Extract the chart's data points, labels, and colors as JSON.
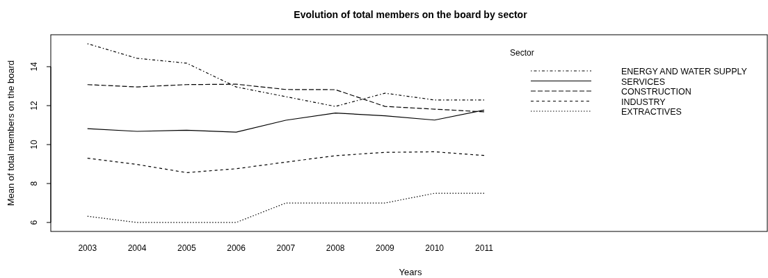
{
  "chart_data": {
    "type": "line",
    "title": "Evolution of total members on the board by sector",
    "xlabel": "Years",
    "ylabel": "Mean of total members on the board",
    "legend_title": "Sector",
    "legend": "top right",
    "grid": false,
    "x": [
      2003,
      2004,
      2005,
      2006,
      2007,
      2008,
      2009,
      2010,
      2011
    ],
    "xlim": [
      2002.26,
      2016.71
    ],
    "xticks": [
      2003,
      2004,
      2005,
      2006,
      2007,
      2008,
      2009,
      2010,
      2011
    ],
    "ylim": [
      5.54,
      15.64
    ],
    "yticks": [
      6,
      8,
      10,
      12,
      14
    ],
    "series": [
      {
        "name": "ENERGY AND WATER SUPPLY",
        "color": "#000000",
        "line_style": "dashdot",
        "values": [
          15.18,
          14.43,
          14.18,
          12.96,
          12.46,
          11.96,
          12.64,
          12.29,
          12.29
        ]
      },
      {
        "name": "SERVICES",
        "color": "#000000",
        "line_style": "solid",
        "values": [
          10.82,
          10.68,
          10.74,
          10.64,
          11.25,
          11.62,
          11.48,
          11.26,
          11.77
        ]
      },
      {
        "name": "CONSTRUCTION",
        "color": "#000000",
        "line_style": "longdash",
        "values": [
          13.08,
          12.96,
          13.08,
          13.1,
          12.83,
          12.82,
          11.96,
          11.82,
          11.68
        ]
      },
      {
        "name": "INDUSTRY",
        "color": "#000000",
        "line_style": "dashed",
        "values": [
          9.3,
          8.98,
          8.56,
          8.76,
          9.1,
          9.43,
          9.6,
          9.63,
          9.44
        ]
      },
      {
        "name": "EXTRACTIVES",
        "color": "#000000",
        "line_style": "dotted",
        "values": [
          6.32,
          6.0,
          6.0,
          6.0,
          7.0,
          7.0,
          7.0,
          7.5,
          7.5
        ]
      }
    ]
  }
}
